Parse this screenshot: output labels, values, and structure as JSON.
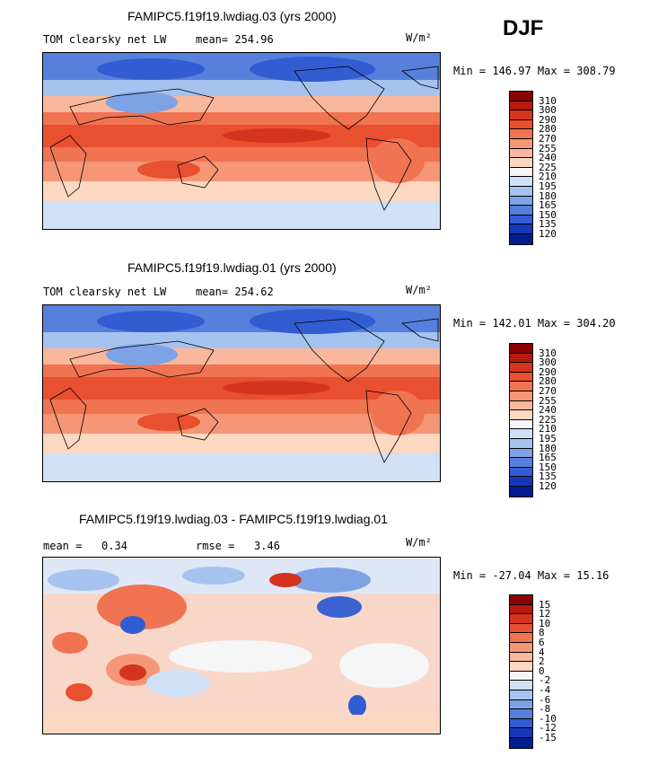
{
  "season": "DJF",
  "panels": [
    {
      "title": "FAMIPC5.f19f19.lwdiag.03 (yrs 2000)",
      "left_label": "TOM clearsky net LW",
      "mean_label": "mean=",
      "mean_value": "254.96",
      "units": "W/m²",
      "minmax": "Min = 146.97 Max = 308.79",
      "colorbar": {
        "colors": [
          "#8b0000",
          "#b51a0d",
          "#d4331d",
          "#e8502f",
          "#f07352",
          "#f59677",
          "#f9b79b",
          "#fcd8c2",
          "#f6f6f6",
          "#cfe0f7",
          "#a6c3f0",
          "#7ea2e6",
          "#5680dc",
          "#325cd1",
          "#1538b8",
          "#001e8f"
        ],
        "labels": [
          "310",
          "300",
          "290",
          "280",
          "270",
          "255",
          "240",
          "225",
          "210",
          "195",
          "180",
          "165",
          "150",
          "135",
          "120"
        ]
      }
    },
    {
      "title": "FAMIPC5.f19f19.lwdiag.01 (yrs 2000)",
      "left_label": "TOM clearsky net LW",
      "mean_label": "mean=",
      "mean_value": "254.62",
      "units": "W/m²",
      "minmax": "Min = 142.01 Max = 304.20",
      "colorbar": {
        "colors": [
          "#8b0000",
          "#b51a0d",
          "#d4331d",
          "#e8502f",
          "#f07352",
          "#f59677",
          "#f9b79b",
          "#fcd8c2",
          "#f6f6f6",
          "#cfe0f7",
          "#a6c3f0",
          "#7ea2e6",
          "#5680dc",
          "#325cd1",
          "#1538b8",
          "#001e8f"
        ],
        "labels": [
          "310",
          "300",
          "290",
          "280",
          "270",
          "255",
          "240",
          "225",
          "210",
          "195",
          "180",
          "165",
          "150",
          "135",
          "120"
        ]
      }
    },
    {
      "title": "FAMIPC5.f19f19.lwdiag.03 - FAMIPC5.f19f19.lwdiag.01",
      "mean_label": "mean =",
      "mean_value": "0.34",
      "rmse_label": "rmse =",
      "rmse_value": "3.46",
      "units": "W/m²",
      "minmax": "Min = -27.04 Max =  15.16",
      "colorbar": {
        "colors": [
          "#8b0000",
          "#b51a0d",
          "#d4331d",
          "#e8502f",
          "#f07352",
          "#f59677",
          "#f9b79b",
          "#fcd8c2",
          "#f6f6f6",
          "#cfe0f7",
          "#a6c3f0",
          "#7ea2e6",
          "#5680dc",
          "#325cd1",
          "#1538b8",
          "#001e8f"
        ],
        "labels": [
          "15",
          "12",
          "10",
          "8",
          "6",
          "4",
          "2",
          "0",
          "-2",
          "-4",
          "-6",
          "-8",
          "-10",
          "-12",
          "-15"
        ]
      }
    }
  ]
}
